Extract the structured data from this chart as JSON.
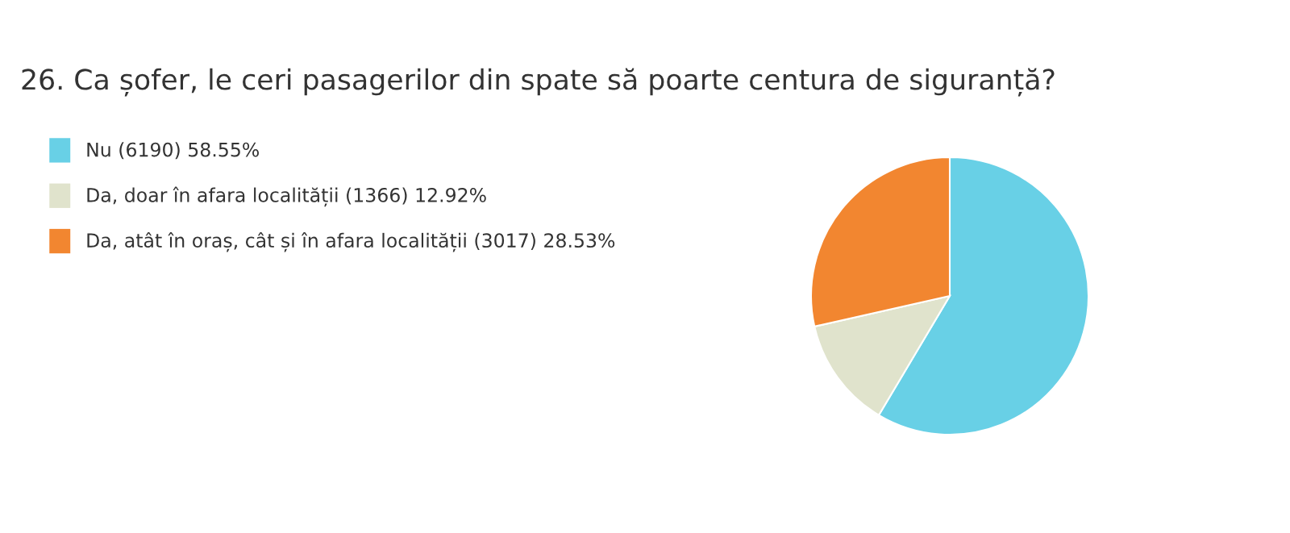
{
  "chart_data": {
    "type": "pie",
    "title": "26. Ca șofer, le ceri pasagerilor din spate să poarte centura de siguranță?",
    "categories": [
      "Nu (6190) 58.55%",
      "Da, doar în afara localității (1366) 12.92%",
      "Da, atât în oraș, cât și în afara localității (3017) 28.53%"
    ],
    "values": [
      6190,
      1366,
      3017
    ],
    "colors": [
      "#68d0e6",
      "#e0e3cc",
      "#f28630"
    ],
    "legend": "top left"
  }
}
